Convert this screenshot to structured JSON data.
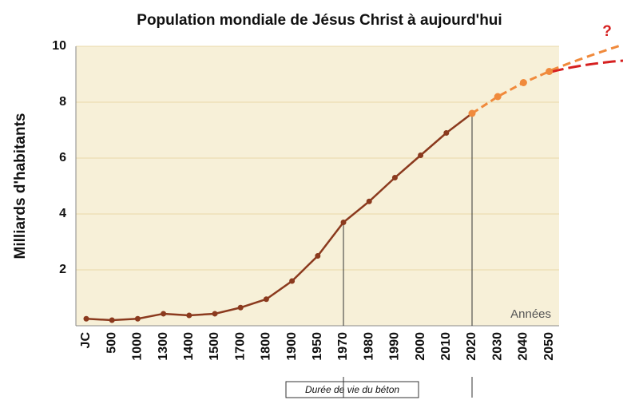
{
  "chart_data": {
    "type": "line",
    "title": "Population mondiale  de Jésus Christ à aujourd'hui",
    "y_label": "Milliards d'habitants",
    "annotations": [
      "Années",
      "Durée de vie du béton",
      "?"
    ],
    "categories": [
      "JC",
      "500",
      "1000",
      "1300",
      "1400",
      "1500",
      "1700",
      "1800",
      "1900",
      "1950",
      "1970",
      "1980",
      "1990",
      "2000",
      "2010",
      "2020",
      "2030",
      "2040",
      "2050"
    ],
    "series": [
      {
        "color": "#8b3a1e",
        "values": [
          0.25,
          0.2,
          0.25,
          0.43,
          0.37,
          0.43,
          0.65,
          0.95,
          1.6,
          2.5,
          3.7,
          4.45,
          5.3,
          6.1,
          6.9,
          7.6,
          null,
          null,
          null
        ]
      },
      {
        "color": "#f08a3c",
        "values": [
          null,
          null,
          null,
          null,
          null,
          null,
          null,
          null,
          null,
          null,
          null,
          null,
          null,
          null,
          null,
          7.6,
          8.2,
          8.7,
          9.1
        ]
      }
    ],
    "ylim": [
      0,
      10
    ],
    "yticks": [
      2,
      4,
      6,
      8,
      10
    ],
    "grid": true
  }
}
